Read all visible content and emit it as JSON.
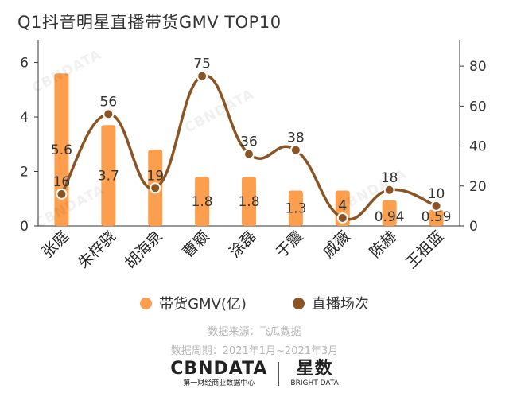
{
  "title": "Q1抖音明星直播带货GMV TOP10",
  "legend": [
    {
      "label": "带货GMV(亿)",
      "color": "#FB9E4D"
    },
    {
      "label": "直播场次",
      "color": "#8B5424"
    }
  ],
  "notes": {
    "source": "数据来源：飞瓜数据",
    "period": "数据周期：2021年1月~2021年3月"
  },
  "brands": [
    {
      "name": "CBNDATA",
      "sub": "第一财经商业数据中心"
    },
    {
      "name": "星数",
      "sub": "BRIGHT DATA"
    }
  ],
  "watermark": "CBNDATA",
  "chart_data": {
    "type": "bar+line",
    "categories": [
      "张庭",
      "朱梓骁",
      "胡海泉",
      "曹颖",
      "涂磊",
      "于震",
      "戚薇",
      "陈赫",
      "王祖蓝"
    ],
    "series": [
      {
        "name": "带货GMV(亿)",
        "type": "bar",
        "axis": "left",
        "color": "#FB9E4D",
        "values": [
          5.6,
          3.7,
          2.8,
          1.8,
          1.8,
          1.3,
          1.3,
          0.94,
          0.59
        ],
        "labels": [
          "5.6",
          "3.7",
          "",
          "1.8",
          "1.8",
          "1.3",
          "",
          "0.94",
          "0.59"
        ]
      },
      {
        "name": "直播场次",
        "type": "line",
        "axis": "right",
        "color": "#8B5424",
        "values": [
          16,
          56,
          19,
          75,
          36,
          38,
          4,
          18,
          10
        ],
        "labels": [
          "16",
          "56",
          "19",
          "75",
          "36",
          "38",
          "4",
          "18",
          "10"
        ]
      }
    ],
    "y_left": {
      "min": 0,
      "max": 6.6,
      "ticks": [
        0,
        2,
        4,
        6
      ]
    },
    "y_right": {
      "min": 0,
      "max": 90,
      "ticks": [
        0,
        20,
        40,
        60,
        80
      ]
    },
    "grid": false,
    "legend_position": "bottom"
  }
}
